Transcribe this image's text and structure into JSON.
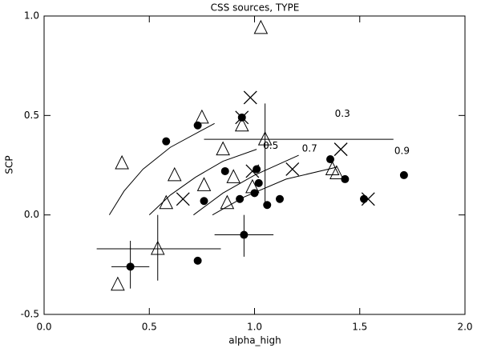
{
  "chart_data": {
    "type": "scatter",
    "title": "CSS sources, TYPE",
    "x_label": "alpha_high",
    "y_label": "SCP",
    "xlim": [
      0,
      2
    ],
    "ylim": [
      -0.5,
      1.0
    ],
    "xticks": [
      {
        "value": 0,
        "label": "0.0"
      },
      {
        "value": 0.5,
        "label": "0.5"
      },
      {
        "value": 1,
        "label": "1.0"
      },
      {
        "value": 1.5,
        "label": "1.5"
      },
      {
        "value": 2,
        "label": "2.0"
      }
    ],
    "yticks": [
      {
        "value": -0.5,
        "label": "-0.5"
      },
      {
        "value": 0,
        "label": "0.0"
      },
      {
        "value": 0.5,
        "label": "0.5"
      },
      {
        "value": 1,
        "label": "1.0"
      }
    ],
    "series": [
      {
        "marker": "circle",
        "color": "#000000",
        "x": [
          0.58,
          0.73,
          0.94,
          1.01,
          0.86,
          0.76,
          0.93,
          1.0,
          1.02,
          1.06,
          1.12,
          1.36,
          1.43,
          1.52,
          1.71,
          0.95,
          0.73,
          0.41
        ],
        "values": [
          0.37,
          0.45,
          0.49,
          0.23,
          0.22,
          0.07,
          0.08,
          0.11,
          0.16,
          0.05,
          0.08,
          0.28,
          0.18,
          0.08,
          0.2,
          -0.1,
          -0.23,
          -0.26
        ],
        "xerr": [
          null,
          null,
          null,
          null,
          null,
          null,
          null,
          null,
          null,
          null,
          null,
          null,
          null,
          null,
          null,
          [
            0.81,
            1.09
          ],
          null,
          [
            0.32,
            0.5
          ]
        ],
        "yerr": [
          null,
          null,
          null,
          null,
          null,
          null,
          null,
          null,
          null,
          null,
          null,
          null,
          null,
          null,
          null,
          [
            0.0,
            -0.21
          ],
          null,
          [
            -0.13,
            -0.37
          ]
        ]
      },
      {
        "marker": "triangle",
        "color": "#000000",
        "x": [
          0.37,
          0.75,
          0.62,
          0.58,
          0.85,
          0.76,
          0.9,
          0.94,
          0.99,
          1.03,
          1.05,
          0.54,
          0.35,
          1.37,
          1.39,
          0.87
        ],
        "values": [
          0.26,
          0.49,
          0.2,
          0.06,
          0.33,
          0.15,
          0.19,
          0.45,
          0.14,
          0.94,
          0.38,
          -0.17,
          -0.35,
          0.23,
          0.21,
          0.06
        ],
        "xerr": [
          null,
          null,
          null,
          null,
          null,
          null,
          null,
          null,
          null,
          null,
          [
            0.76,
            1.66
          ],
          [
            0.25,
            0.84
          ],
          null,
          null,
          null,
          null
        ],
        "yerr": [
          null,
          null,
          null,
          null,
          null,
          null,
          null,
          null,
          null,
          null,
          [
            0.56,
            0.04
          ],
          [
            0.0,
            -0.33
          ],
          null,
          null,
          null,
          null
        ]
      },
      {
        "marker": "cross",
        "color": "#000000",
        "x": [
          0.98,
          0.94,
          0.99,
          1.18,
          1.41,
          1.54,
          0.66
        ],
        "values": [
          0.59,
          0.49,
          0.22,
          0.23,
          0.33,
          0.08,
          0.08
        ]
      },
      {
        "marker": "line",
        "name": "0.3",
        "color": "#000000",
        "x": [
          0.31,
          0.38,
          0.47,
          0.6,
          0.81
        ],
        "values": [
          0.0,
          0.12,
          0.23,
          0.34,
          0.46
        ]
      },
      {
        "marker": "line",
        "name": "0.5",
        "color": "#000000",
        "x": [
          0.5,
          0.6,
          0.72,
          0.85,
          1.01
        ],
        "values": [
          0.0,
          0.1,
          0.19,
          0.27,
          0.33
        ]
      },
      {
        "marker": "line",
        "name": "0.7",
        "color": "#000000",
        "x": [
          0.71,
          0.85,
          1.0,
          1.21
        ],
        "values": [
          0.0,
          0.11,
          0.2,
          0.3
        ]
      },
      {
        "marker": "line",
        "name": "0.9",
        "color": "#000000",
        "x": [
          0.8,
          0.95,
          1.15,
          1.39
        ],
        "values": [
          0.0,
          0.09,
          0.18,
          0.24
        ]
      }
    ]
  }
}
